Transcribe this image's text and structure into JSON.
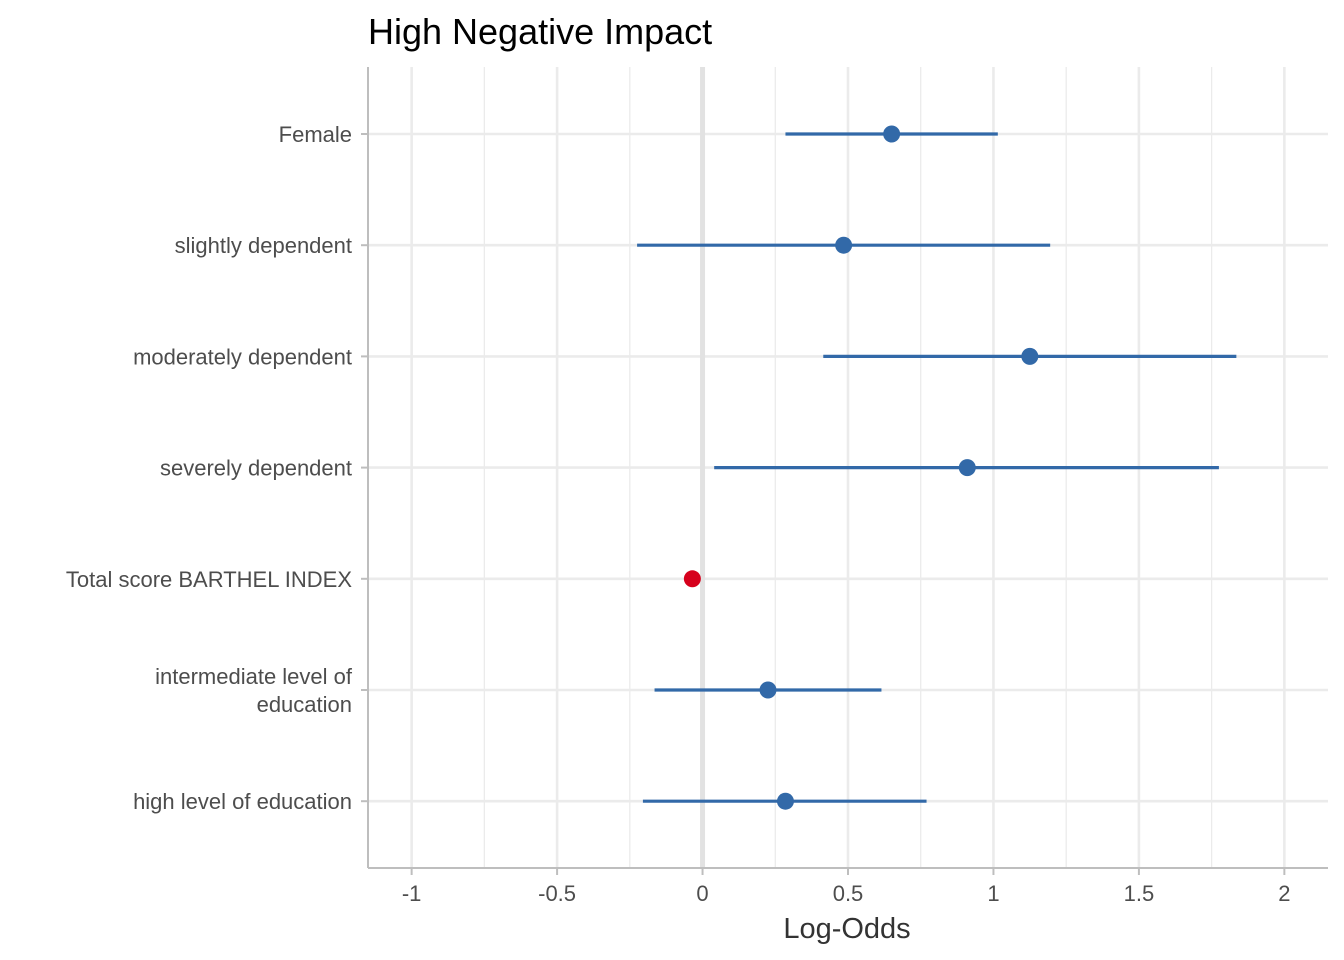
{
  "chart_data": {
    "type": "scatter",
    "title": "High Negative Impact",
    "xlabel": "Log-Odds",
    "ylabel": "",
    "xlim": [
      -1.15,
      2.15
    ],
    "x_ticks": [
      -1,
      -0.5,
      0,
      0.5,
      1,
      1.5,
      2
    ],
    "x_tick_labels": [
      "-1",
      "-0.5",
      "0",
      "0.5",
      "1",
      "1.5",
      "2"
    ],
    "reference_line": 0,
    "grid": true,
    "legend": "none",
    "colors": {
      "positive": "#3269a8",
      "negative": "#d6001c",
      "grid": "#ebebeb",
      "zero_line": "#e2e2e2",
      "axis": "#bebebe"
    },
    "terms": [
      {
        "label": [
          "Female"
        ],
        "estimate": 0.65,
        "ci_low": 0.285,
        "ci_high": 1.015
      },
      {
        "label": [
          "slightly dependent"
        ],
        "estimate": 0.485,
        "ci_low": -0.225,
        "ci_high": 1.195
      },
      {
        "label": [
          "moderately dependent"
        ],
        "estimate": 1.125,
        "ci_low": 0.415,
        "ci_high": 1.835
      },
      {
        "label": [
          "severely dependent"
        ],
        "estimate": 0.91,
        "ci_low": 0.04,
        "ci_high": 1.775
      },
      {
        "label": [
          "Total score BARTHEL INDEX"
        ],
        "estimate": -0.035,
        "ci_low": -0.045,
        "ci_high": -0.025
      },
      {
        "label": [
          "intermediate level of",
          "education"
        ],
        "estimate": 0.225,
        "ci_low": -0.165,
        "ci_high": 0.615
      },
      {
        "label": [
          "high level of education"
        ],
        "estimate": 0.285,
        "ci_low": -0.205,
        "ci_high": 0.77
      }
    ]
  }
}
